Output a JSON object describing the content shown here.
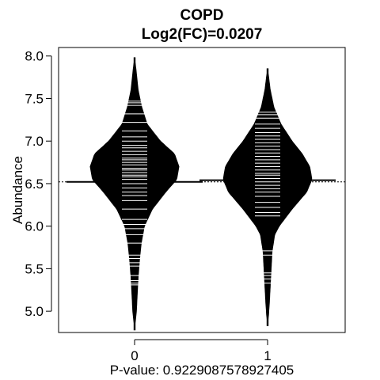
{
  "chart_data": {
    "type": "beanplot",
    "title": "COPD",
    "subtitle": "Log2(FC)=0.0207",
    "xlabel": "P-value: 0.9229087578927405",
    "ylabel": "Abundance",
    "categories": [
      "0",
      "1"
    ],
    "yticks": [
      "5.0",
      "5.5",
      "6.0",
      "6.5",
      "7.0",
      "7.5",
      "8.0"
    ],
    "ylim": [
      4.75,
      8.1
    ],
    "overall_mean": 6.52,
    "grid": false,
    "beans": [
      {
        "category": "0",
        "mean": 6.52,
        "range": [
          4.78,
          7.98
        ],
        "density": [
          [
            4.78,
            0.0
          ],
          [
            4.9,
            0.02
          ],
          [
            5.0,
            0.04
          ],
          [
            5.2,
            0.06
          ],
          [
            5.4,
            0.08
          ],
          [
            5.6,
            0.11
          ],
          [
            5.8,
            0.15
          ],
          [
            6.0,
            0.22
          ],
          [
            6.2,
            0.4
          ],
          [
            6.4,
            0.7
          ],
          [
            6.55,
            0.95
          ],
          [
            6.7,
            1.0
          ],
          [
            6.85,
            0.9
          ],
          [
            7.0,
            0.58
          ],
          [
            7.2,
            0.28
          ],
          [
            7.4,
            0.16
          ],
          [
            7.6,
            0.08
          ],
          [
            7.8,
            0.04
          ],
          [
            7.98,
            0.0
          ]
        ],
        "points": [
          5.31,
          5.33,
          5.36,
          5.42,
          5.53,
          5.57,
          5.62,
          5.66,
          5.8,
          5.9,
          5.97,
          6.02,
          6.08,
          6.2,
          6.3,
          6.36,
          6.4,
          6.45,
          6.5,
          6.55,
          6.58,
          6.6,
          6.63,
          6.66,
          6.68,
          6.72,
          6.75,
          6.78,
          6.8,
          6.84,
          6.88,
          6.92,
          6.95,
          7.0,
          7.05,
          7.12,
          7.22,
          7.32,
          7.42,
          7.45,
          7.47
        ]
      },
      {
        "category": "1",
        "mean": 6.54,
        "range": [
          4.83,
          7.85
        ],
        "density": [
          [
            4.83,
            0.0
          ],
          [
            4.95,
            0.02
          ],
          [
            5.1,
            0.04
          ],
          [
            5.3,
            0.06
          ],
          [
            5.5,
            0.08
          ],
          [
            5.7,
            0.1
          ],
          [
            5.9,
            0.16
          ],
          [
            6.0,
            0.26
          ],
          [
            6.2,
            0.55
          ],
          [
            6.4,
            0.88
          ],
          [
            6.55,
            1.0
          ],
          [
            6.7,
            0.95
          ],
          [
            6.85,
            0.78
          ],
          [
            7.0,
            0.55
          ],
          [
            7.2,
            0.3
          ],
          [
            7.4,
            0.14
          ],
          [
            7.6,
            0.06
          ],
          [
            7.85,
            0.0
          ]
        ],
        "points": [
          5.33,
          5.38,
          5.42,
          5.45,
          5.66,
          5.71,
          6.12,
          6.16,
          6.22,
          6.28,
          6.35,
          6.4,
          6.44,
          6.48,
          6.52,
          6.56,
          6.6,
          6.62,
          6.66,
          6.7,
          6.74,
          6.78,
          6.82,
          6.86,
          6.9,
          6.94,
          6.98,
          7.02,
          7.06,
          7.1,
          7.15,
          7.2,
          7.27,
          7.31,
          7.34
        ]
      }
    ]
  }
}
